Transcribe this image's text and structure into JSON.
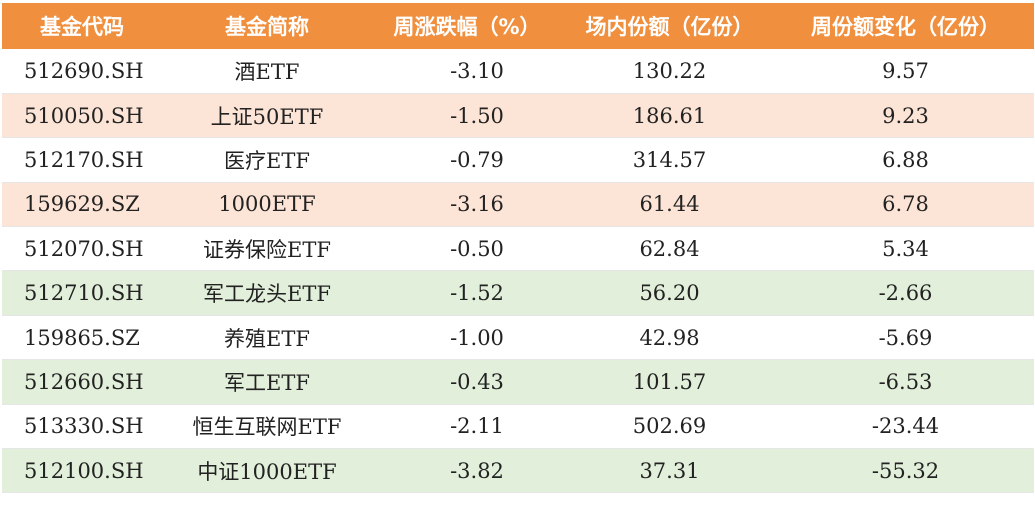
{
  "headers": [
    "基金代码",
    "基金简称",
    "周涨跌幅（%）",
    "场内份额（亿份）",
    "周份额变化（亿份）"
  ],
  "row_colors": {
    "white": "#ffffff",
    "orange": "#fce4d6",
    "green": "#e2efda",
    "header": "#f08f3d"
  },
  "rows": [
    {
      "code": "512690.SH",
      "name": "酒ETF",
      "weekly_change": "-3.10",
      "shares": "130.22",
      "share_change": "9.57",
      "tone": "white"
    },
    {
      "code": "510050.SH",
      "name": "上证50ETF",
      "weekly_change": "-1.50",
      "shares": "186.61",
      "share_change": "9.23",
      "tone": "orange"
    },
    {
      "code": "512170.SH",
      "name": "医疗ETF",
      "weekly_change": "-0.79",
      "shares": "314.57",
      "share_change": "6.88",
      "tone": "white"
    },
    {
      "code": "159629.SZ",
      "name": "1000ETF",
      "weekly_change": "-3.16",
      "shares": "61.44",
      "share_change": "6.78",
      "tone": "orange"
    },
    {
      "code": "512070.SH",
      "name": "证券保险ETF",
      "weekly_change": "-0.50",
      "shares": "62.84",
      "share_change": "5.34",
      "tone": "white"
    },
    {
      "code": "512710.SH",
      "name": "军工龙头ETF",
      "weekly_change": "-1.52",
      "shares": "56.20",
      "share_change": "-2.66",
      "tone": "green"
    },
    {
      "code": "159865.SZ",
      "name": "养殖ETF",
      "weekly_change": "-1.00",
      "shares": "42.98",
      "share_change": "-5.69",
      "tone": "white"
    },
    {
      "code": "512660.SH",
      "name": "军工ETF",
      "weekly_change": "-0.43",
      "shares": "101.57",
      "share_change": "-6.53",
      "tone": "green"
    },
    {
      "code": "513330.SH",
      "name": "恒生互联网ETF",
      "weekly_change": "-2.11",
      "shares": "502.69",
      "share_change": "-23.44",
      "tone": "white"
    },
    {
      "code": "512100.SH",
      "name": "中证1000ETF",
      "weekly_change": "-3.82",
      "shares": "37.31",
      "share_change": "-55.32",
      "tone": "green"
    }
  ]
}
